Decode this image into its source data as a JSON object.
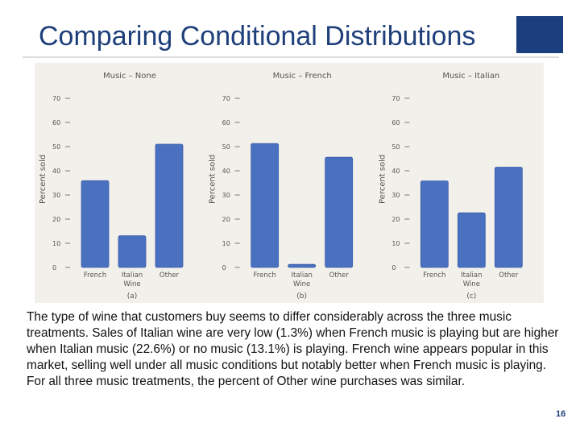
{
  "slide": {
    "title": "Comparing Conditional Distributions",
    "body": "The type of wine that customers buy seems to differ considerably across the three music treatments. Sales of Italian wine are very low (1.3%) when French music is playing but are higher when Italian music (22.6%) or no music (13.1%) is playing. French wine appears popular in this market, selling well under all music conditions but notably better when French music is playing. For all three music treatments, the percent of Other wine purchases was similar.",
    "page_number": "16",
    "colors": {
      "title": "#1f3f7a",
      "accent_block": "#1b3f7e",
      "bar": "#4a70c0",
      "panel": "#f2f0ea"
    }
  },
  "chart_data": [
    {
      "type": "bar",
      "title": "Music – None",
      "categories": [
        "French",
        "Italian Wine",
        "Other"
      ],
      "values": [
        35.9,
        13.1,
        51.0
      ],
      "ylabel": "Percent sold",
      "xlabel": "(a)",
      "ylim": [
        0,
        70
      ],
      "yticks": [
        0,
        10,
        20,
        30,
        40,
        50,
        60,
        70
      ]
    },
    {
      "type": "bar",
      "title": "Music – French",
      "categories": [
        "French",
        "Italian Wine",
        "Other"
      ],
      "values": [
        51.3,
        1.3,
        45.6
      ],
      "ylabel": "Percent sold",
      "xlabel": "(b)",
      "ylim": [
        0,
        70
      ],
      "yticks": [
        0,
        10,
        20,
        30,
        40,
        50,
        60,
        70
      ]
    },
    {
      "type": "bar",
      "title": "Music – Italian",
      "categories": [
        "French",
        "Italian Wine",
        "Other"
      ],
      "values": [
        35.8,
        22.6,
        41.5
      ],
      "ylabel": "Percent sold",
      "xlabel": "(c)",
      "ylim": [
        0,
        70
      ],
      "yticks": [
        0,
        10,
        20,
        30,
        40,
        50,
        60,
        70
      ]
    }
  ]
}
